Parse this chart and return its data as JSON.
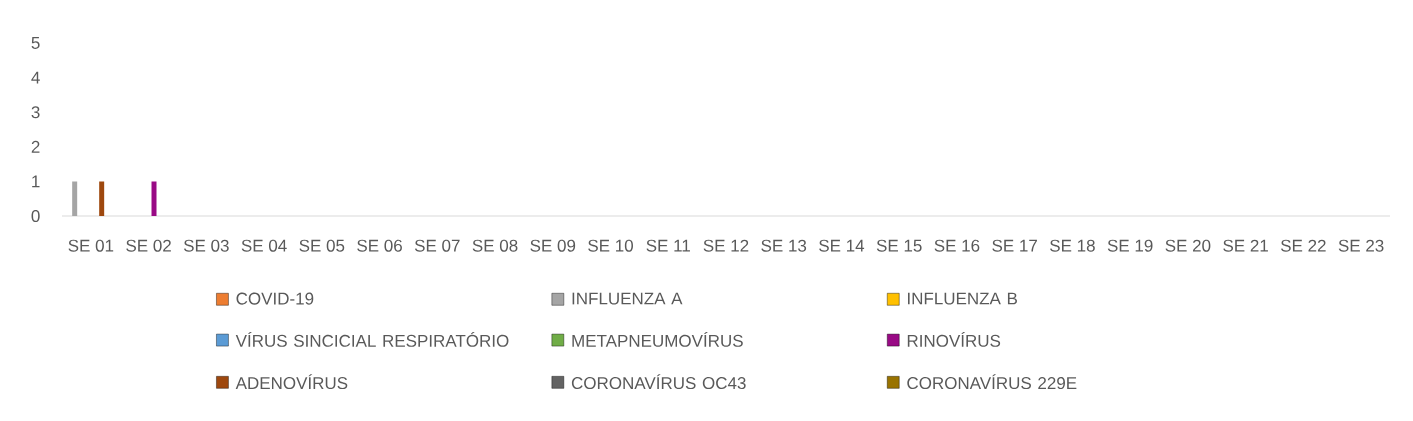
{
  "chart_data": {
    "type": "bar",
    "categories": [
      "SE 01",
      "SE 02",
      "SE 03",
      "SE 04",
      "SE 05",
      "SE 06",
      "SE 07",
      "SE 08",
      "SE 09",
      "SE 10",
      "SE 11",
      "SE 12",
      "SE 13",
      "SE 14",
      "SE 15",
      "SE 16",
      "SE 17",
      "SE 18",
      "SE 19",
      "SE 20",
      "SE 21",
      "SE 22",
      "SE 23"
    ],
    "series": [
      {
        "name": "COVID-19",
        "color": "#ed7d31",
        "values": [
          0,
          0,
          0,
          0,
          0,
          0,
          0,
          0,
          0,
          0,
          0,
          0,
          0,
          0,
          0,
          0,
          0,
          0,
          0,
          0,
          0,
          0,
          0
        ]
      },
      {
        "name": "INFLUENZA A",
        "color": "#a5a5a5",
        "values": [
          1,
          0,
          0,
          0,
          0,
          0,
          0,
          0,
          0,
          0,
          0,
          0,
          0,
          0,
          0,
          0,
          0,
          0,
          0,
          0,
          0,
          0,
          0
        ]
      },
      {
        "name": "INFLUENZA B",
        "color": "#ffc000",
        "values": [
          0,
          0,
          0,
          0,
          0,
          0,
          0,
          0,
          0,
          0,
          0,
          0,
          0,
          0,
          0,
          0,
          0,
          0,
          0,
          0,
          0,
          0,
          0
        ]
      },
      {
        "name": "VÍRUS SINCICIAL RESPIRATÓRIO",
        "color": "#5b9bd5",
        "values": [
          0,
          0,
          0,
          0,
          0,
          0,
          0,
          0,
          0,
          0,
          0,
          0,
          0,
          0,
          0,
          0,
          0,
          0,
          0,
          0,
          0,
          0,
          0
        ]
      },
      {
        "name": "METAPNEUMOVÍRUS",
        "color": "#70ad47",
        "values": [
          0,
          0,
          0,
          0,
          0,
          0,
          0,
          0,
          0,
          0,
          0,
          0,
          0,
          0,
          0,
          0,
          0,
          0,
          0,
          0,
          0,
          0,
          0
        ]
      },
      {
        "name": "RINOVÍRUS",
        "color": "#990a85",
        "values": [
          0,
          1,
          0,
          0,
          0,
          0,
          0,
          0,
          0,
          0,
          0,
          0,
          0,
          0,
          0,
          0,
          0,
          0,
          0,
          0,
          0,
          0,
          0
        ]
      },
      {
        "name": "ADENOVÍRUS",
        "color": "#9e480e",
        "values": [
          1,
          0,
          0,
          0,
          0,
          0,
          0,
          0,
          0,
          0,
          0,
          0,
          0,
          0,
          0,
          0,
          0,
          0,
          0,
          0,
          0,
          0,
          0
        ]
      },
      {
        "name": "CORONAVÍRUS OC43",
        "color": "#636363",
        "values": [
          0,
          0,
          0,
          0,
          0,
          0,
          0,
          0,
          0,
          0,
          0,
          0,
          0,
          0,
          0,
          0,
          0,
          0,
          0,
          0,
          0,
          0,
          0
        ]
      },
      {
        "name": "CORONAVÍRUS 229E",
        "color": "#997300",
        "values": [
          0,
          0,
          0,
          0,
          0,
          0,
          0,
          0,
          0,
          0,
          0,
          0,
          0,
          0,
          0,
          0,
          0,
          0,
          0,
          0,
          0,
          0,
          0
        ]
      }
    ],
    "ylim": [
      0,
      5
    ],
    "yticks": [
      0,
      1,
      2,
      3,
      4,
      5
    ],
    "legend": "bottom"
  }
}
